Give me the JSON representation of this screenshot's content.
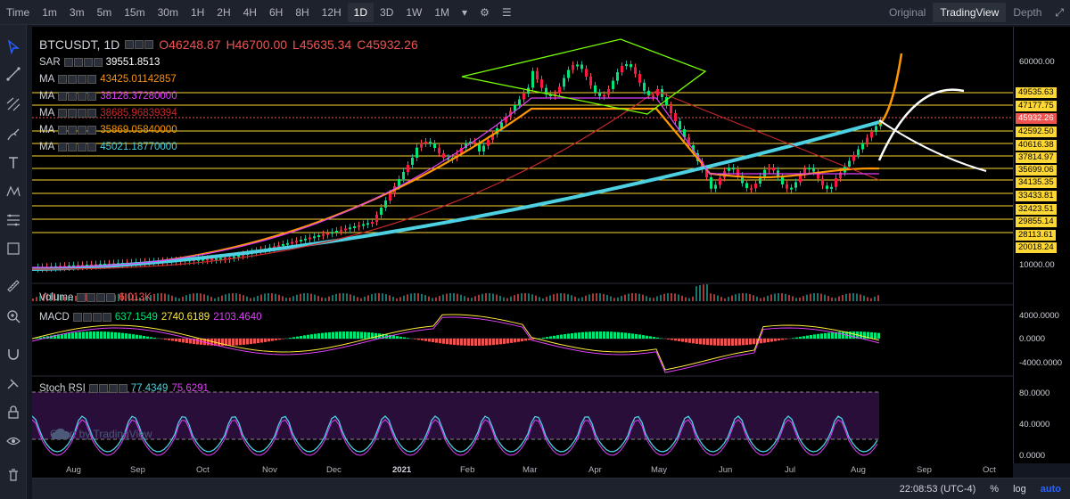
{
  "toolbar": {
    "timeframes": [
      "Time",
      "1m",
      "3m",
      "5m",
      "15m",
      "30m",
      "1H",
      "2H",
      "4H",
      "6H",
      "8H",
      "12H",
      "1D",
      "3D",
      "1W",
      "1M"
    ],
    "active_timeframe": "1D",
    "views": [
      "Original",
      "TradingView",
      "Depth"
    ],
    "active_view": "TradingView"
  },
  "symbol": {
    "name": "BTCUSDT, 1D",
    "open": "O46248.87",
    "high": "H46700.00",
    "low": "L45635.34",
    "close": "C45932.26"
  },
  "indicators": [
    {
      "name": "SAR",
      "value": "39551.8513",
      "color": "#ffffff"
    },
    {
      "name": "MA",
      "value": "43425.01142857",
      "color": "#f7931a"
    },
    {
      "name": "MA",
      "value": "38128.37280000",
      "color": "#e040fb"
    },
    {
      "name": "MA",
      "value": "38685.96839394",
      "color": "#c62828"
    },
    {
      "name": "MA",
      "value": "35869.05840000",
      "color": "#ff9800"
    },
    {
      "name": "MA",
      "value": "45021.18770000",
      "color": "#4dd0e1"
    }
  ],
  "price_scale": {
    "levels": [
      "60000.00",
      "49535.63",
      "47177.75",
      "45932.26",
      "42592.50",
      "40616.38",
      "37814.97",
      "35699.06",
      "34135.35",
      "33433.81",
      "32423.51",
      "29855.14",
      "28113.61",
      "20018.24",
      "10000.00"
    ],
    "current_price": "45932.26"
  },
  "volume": {
    "label": "Volume",
    "value": "6.013K"
  },
  "macd": {
    "label": "MACD",
    "values": [
      "637.1549",
      "2740.6189",
      "2103.4640"
    ],
    "scale": [
      "4000.0000",
      "0.0000",
      "-4000.0000"
    ]
  },
  "stoch": {
    "label": "Stoch RSI",
    "values": [
      "77.4349",
      "75.6291"
    ],
    "scale": [
      "80.0000",
      "40.0000",
      "0.0000"
    ]
  },
  "time_axis": [
    "Aug",
    "Sep",
    "Oct",
    "Nov",
    "Dec",
    "2021",
    "Feb",
    "Mar",
    "Apr",
    "May",
    "Jun",
    "Jul",
    "Aug",
    "Sep",
    "Oct"
  ],
  "status": {
    "clock": "22:08:53 (UTC-4)",
    "percent": "%",
    "log": "log",
    "auto": "auto"
  },
  "watermark": "Chart by TradingView"
}
